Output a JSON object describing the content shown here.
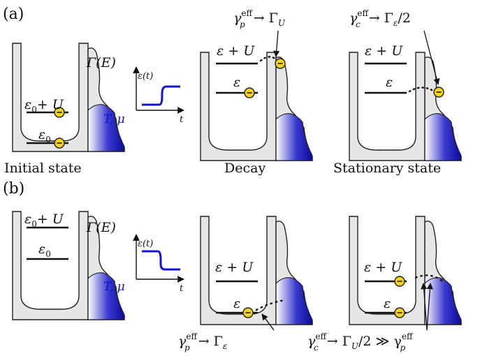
{
  "panels": {
    "a": {
      "label": "(a)"
    },
    "b": {
      "label": "(b)"
    }
  },
  "captions": {
    "initial": "Initial state",
    "decay": "Decay",
    "stationary": "Stationary state"
  },
  "levels": {
    "eps0": "ε",
    "eps0_sub": "0",
    "eps0_plus_u": "+ U",
    "eps": "ε",
    "eps_plus_u": "ε + U"
  },
  "lead": {
    "gamma_e": "Γ(E)",
    "t_mu": "T, μ"
  },
  "pulse": {
    "eps_t": "ε(t)",
    "t_axis": "t"
  },
  "annotations": {
    "a_decay": {
      "lhs": "γ",
      "sup": "eff",
      "sub": "p",
      "rhs": "→ Γ",
      "rhs_sub": "U"
    },
    "a_stationary": {
      "lhs": "γ",
      "sup": "eff",
      "sub": "c",
      "rhs": "→ Γ",
      "rhs_sub": "ε",
      "tail": "/2"
    },
    "b_decay": {
      "lhs": "γ",
      "sup": "eff",
      "sub": "p",
      "rhs": "→ Γ",
      "rhs_sub": "ε"
    },
    "b_stationary": {
      "lhs": "γ",
      "sup": "eff",
      "sub": "c",
      "rhs": "→ Γ",
      "rhs_sub": "U",
      "tail": "/2 ≫ γ",
      "tail_sup": "eff",
      "tail_sub": "p"
    }
  },
  "colors": {
    "well_fill": "#e6e6e6",
    "lead_dark": "#0a0a9a",
    "lead_light": "#ffffff",
    "electron": "#f2d21e",
    "pulse": "#1414d8"
  }
}
